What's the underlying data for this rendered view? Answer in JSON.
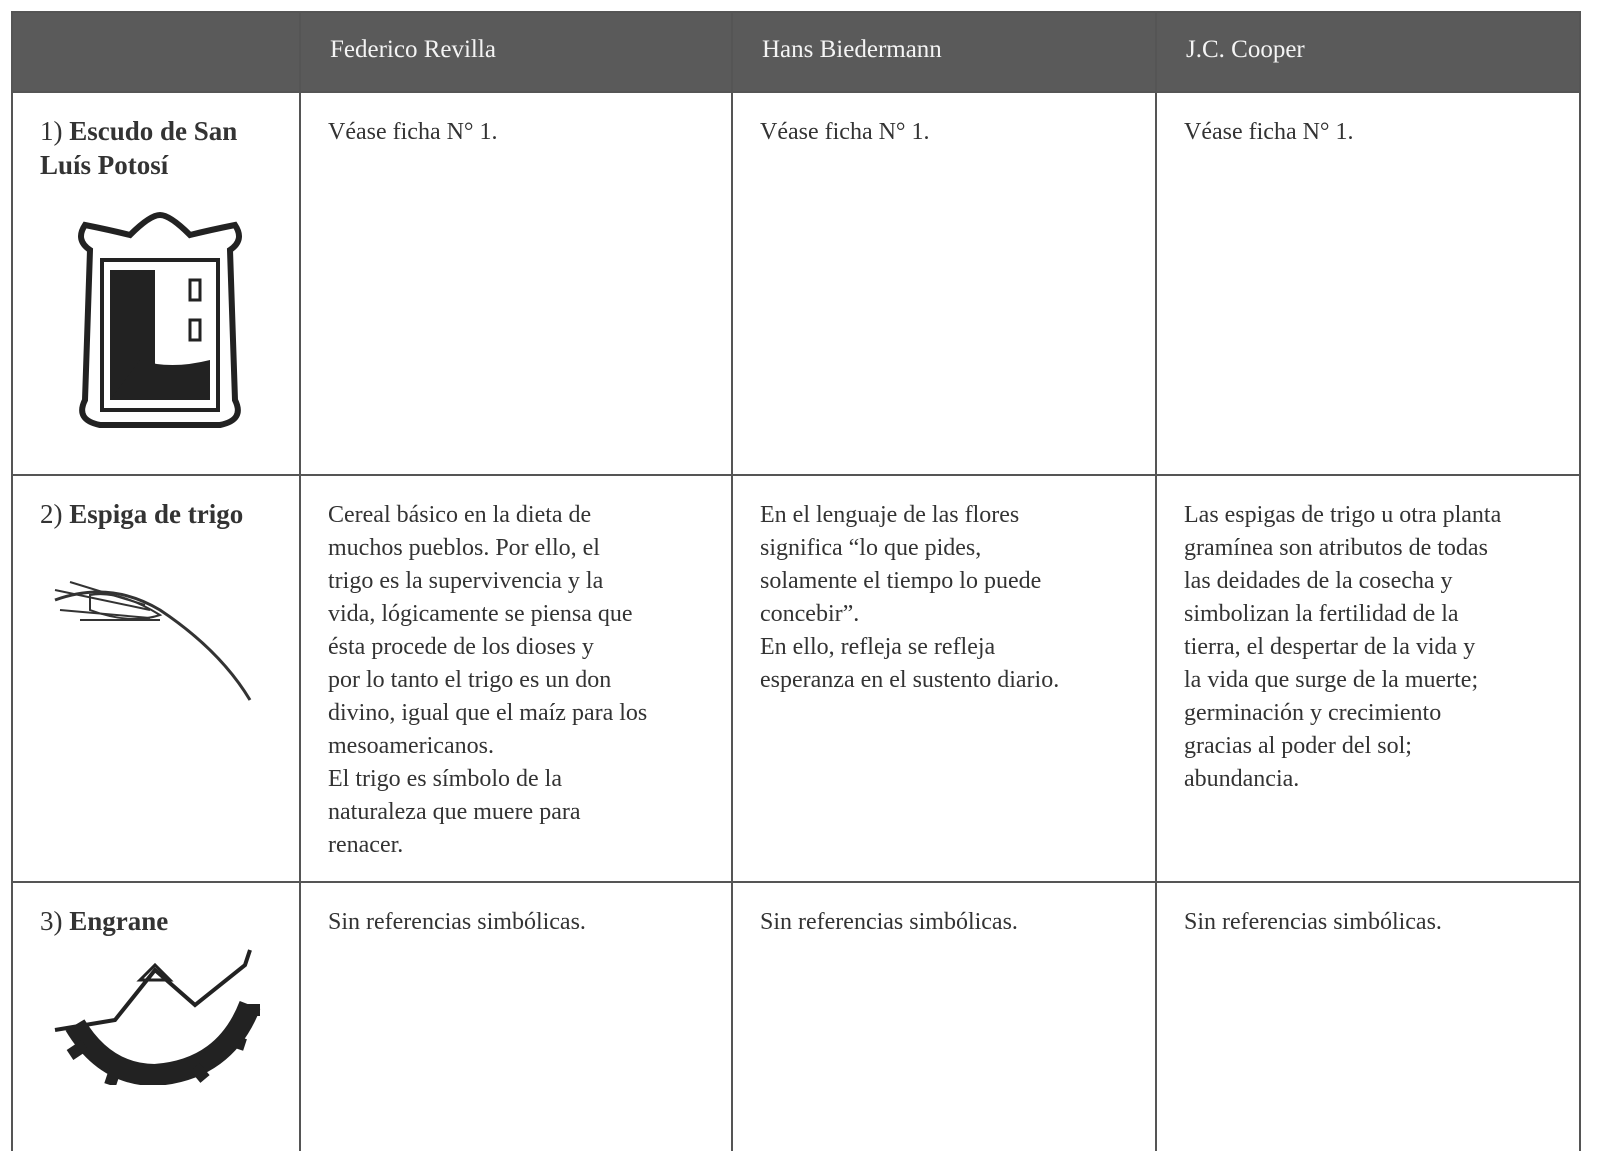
{
  "table": {
    "header": [
      "Federico Revilla",
      "Hans Biedermann",
      "J.C. Cooper"
    ],
    "rows": [
      {
        "number": "1)",
        "name": "Escudo de San Luís Potosí",
        "cells": [
          [
            "Véase ficha N° 1."
          ],
          [
            "Véase ficha N° 1."
          ],
          [
            "Véase ficha N° 1."
          ]
        ]
      },
      {
        "number": "2)",
        "name": "Espiga de trigo",
        "cells": [
          [
            "Cereal básico en la dieta de",
            "muchos pueblos. Por ello, el",
            "trigo es la supervivencia y la",
            "vida, lógicamente se piensa que",
            "ésta procede de los dioses  y",
            "por lo tanto el trigo es un don",
            "divino, igual que el maíz para los",
            "mesoamericanos.",
            "El trigo es símbolo de la",
            "naturaleza que muere para",
            "renacer."
          ],
          [
            "En el lenguaje de las flores",
            "significa “lo que pides,",
            "solamente el tiempo lo puede",
            "concebir”.",
            "En ello, refleja se refleja",
            "esperanza en el sustento diario."
          ],
          [
            "Las espigas de trigo u otra planta",
            "gramínea son atributos de todas",
            "las deidades de la cosecha y",
            "simbolizan la fertilidad de la",
            "tierra, el despertar de la vida y",
            "la vida que surge de la muerte;",
            "germinación y crecimiento",
            "gracias al poder del sol;",
            "abundancia."
          ]
        ]
      },
      {
        "number": "3)",
        "name": "Engrane",
        "cells": [
          [
            "Sin referencias simbólicas."
          ],
          [
            "Sin referencias simbólicas."
          ],
          [
            "Sin referencias simbólicas."
          ]
        ]
      }
    ]
  }
}
